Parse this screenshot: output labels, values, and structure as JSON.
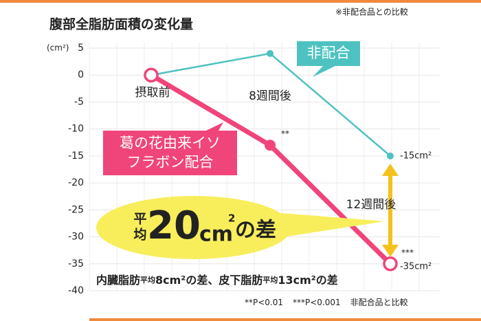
{
  "chart_data": {
    "type": "line",
    "title": "腹部全脂肪面積の変化量",
    "note": "※非配合品との比較",
    "ylabel": "(cm²)",
    "categories": [
      "摂取前",
      "8週間後",
      "12週間後"
    ],
    "series": [
      {
        "name": "非配合",
        "color": "#4ec2c0",
        "values": [
          0,
          4,
          -15
        ],
        "value_labels": [
          null,
          null,
          "-15cm²"
        ],
        "significance": [
          null,
          null,
          null
        ]
      },
      {
        "name": "葛の花由来イソフラボン配合",
        "color": "#f0457a",
        "values": [
          0,
          -13,
          -35
        ],
        "value_labels": [
          null,
          null,
          "-35cm²"
        ],
        "significance": [
          null,
          "**",
          "***"
        ]
      }
    ],
    "ylim": [
      -40,
      5
    ],
    "yticks": [
      5,
      0,
      -5,
      -10,
      -15,
      -20,
      -25,
      -30,
      -35,
      -40
    ],
    "grid": true,
    "callout": {
      "prefix": "平均",
      "number": "20",
      "unit": "cm",
      "sup": "2",
      "suffix": "の差"
    },
    "subtext": [
      "内臓脂肪",
      "平均",
      "8cm²の差、皮下脂肪",
      "平均",
      "13cm²の差"
    ],
    "footnote": [
      "**P<0.01",
      "***P<0.001",
      "非配合品と比較"
    ]
  }
}
